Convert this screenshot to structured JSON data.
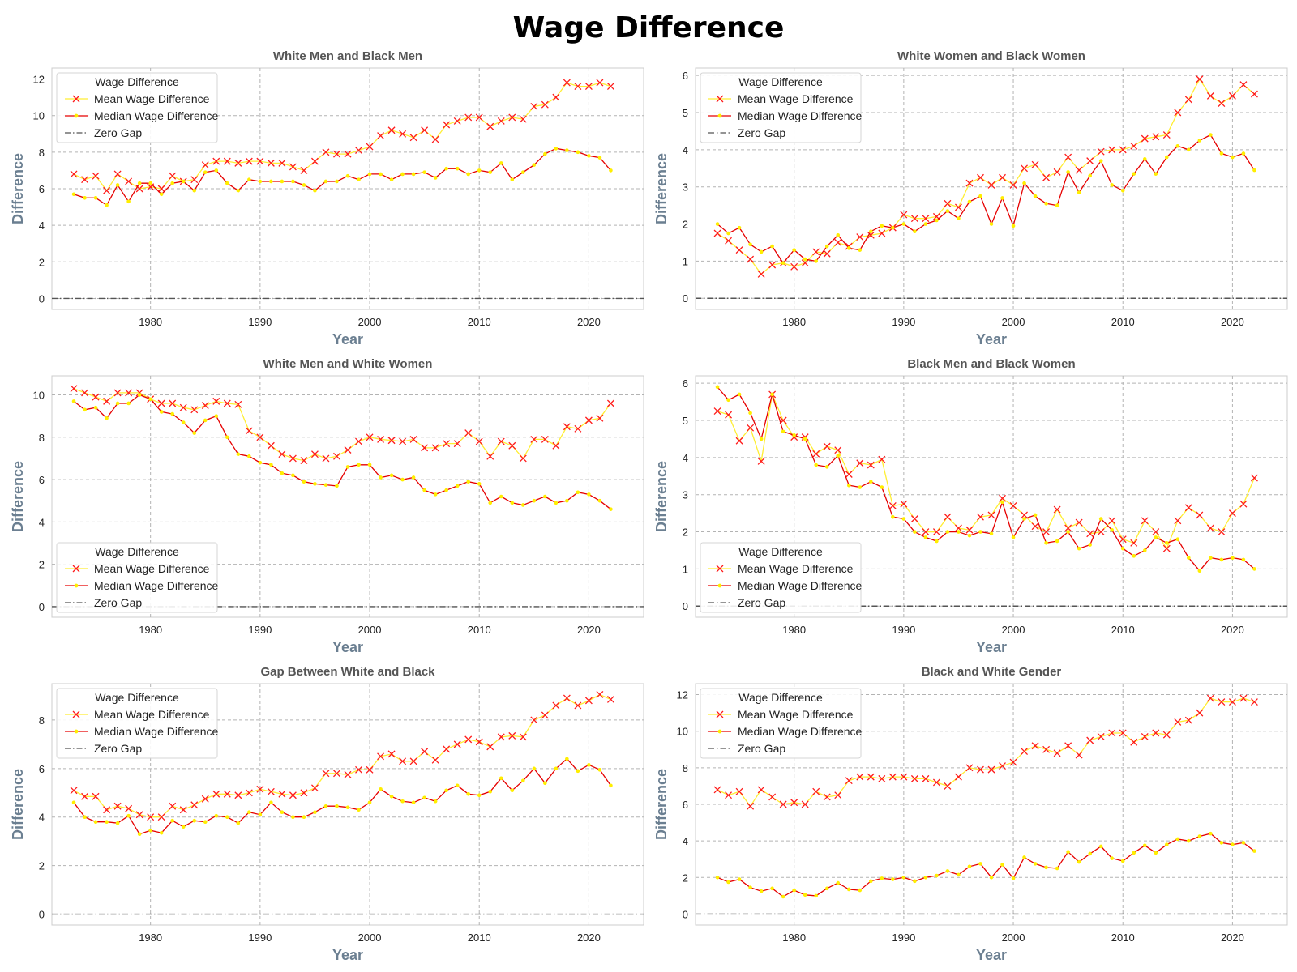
{
  "title": "Wage Difference",
  "chart_data": [
    {
      "type": "line",
      "title": "White Men and Black Men",
      "xlabel": "Year",
      "ylabel": "Difference",
      "xlim": [
        1971,
        2025
      ],
      "ylim": [
        -0.6,
        12.6
      ],
      "xticks": [
        "1980",
        "1990",
        "2000",
        "2010",
        "2020"
      ],
      "yticks": [
        "0",
        "2",
        "4",
        "6",
        "8",
        "10",
        "12"
      ],
      "grid": true,
      "legend": {
        "title": "Wage Difference",
        "position": "upper-left"
      },
      "x_start": 1973,
      "x_end": 2022,
      "series": [
        {
          "name": "Mean Wage Difference",
          "values": [
            6.8,
            6.5,
            6.7,
            5.9,
            6.8,
            6.4,
            6.0,
            6.1,
            6.0,
            6.7,
            6.4,
            6.5,
            7.3,
            7.5,
            7.5,
            7.4,
            7.5,
            7.5,
            7.4,
            7.4,
            7.2,
            7.0,
            7.5,
            8.0,
            7.9,
            7.9,
            8.1,
            8.3,
            8.9,
            9.2,
            9.0,
            8.8,
            9.2,
            8.7,
            9.5,
            9.7,
            9.9,
            9.9,
            9.4,
            9.7,
            9.9,
            9.8,
            10.5,
            10.6,
            11.0,
            11.8,
            11.6,
            11.6,
            11.8,
            11.6
          ]
        },
        {
          "name": "Median Wage Difference",
          "values": [
            5.7,
            5.5,
            5.5,
            5.1,
            6.2,
            5.3,
            6.3,
            6.3,
            5.7,
            6.3,
            6.4,
            5.9,
            6.9,
            7.0,
            6.3,
            5.9,
            6.5,
            6.4,
            6.4,
            6.4,
            6.4,
            6.2,
            5.9,
            6.4,
            6.4,
            6.7,
            6.5,
            6.8,
            6.8,
            6.5,
            6.8,
            6.8,
            6.9,
            6.6,
            7.1,
            7.1,
            6.8,
            7.0,
            6.9,
            7.4,
            6.5,
            6.9,
            7.3,
            7.9,
            8.2,
            8.1,
            8.0,
            7.8,
            7.7,
            7.0
          ]
        },
        {
          "name": "Zero Gap",
          "value": 0
        }
      ]
    },
    {
      "type": "line",
      "title": "White Women and Black Women",
      "xlabel": "Year",
      "ylabel": "Difference",
      "xlim": [
        1971,
        2025
      ],
      "ylim": [
        -0.3,
        6.2
      ],
      "xticks": [
        "1980",
        "1990",
        "2000",
        "2010",
        "2020"
      ],
      "yticks": [
        "0",
        "1",
        "2",
        "3",
        "4",
        "5",
        "6"
      ],
      "grid": true,
      "legend": {
        "title": "Wage Difference",
        "position": "upper-left"
      },
      "x_start": 1973,
      "x_end": 2022,
      "series": [
        {
          "name": "Mean Wage Difference",
          "values": [
            1.75,
            1.55,
            1.3,
            1.05,
            0.65,
            0.9,
            0.95,
            0.85,
            0.95,
            1.25,
            1.2,
            1.5,
            1.4,
            1.65,
            1.7,
            1.75,
            1.9,
            2.25,
            2.15,
            2.15,
            2.2,
            2.55,
            2.45,
            3.1,
            3.25,
            3.05,
            3.25,
            3.05,
            3.5,
            3.6,
            3.25,
            3.4,
            3.8,
            3.45,
            3.7,
            3.95,
            4.0,
            4.0,
            4.1,
            4.3,
            4.35,
            4.4,
            5.0,
            5.35,
            5.9,
            5.45,
            5.25,
            5.45,
            5.75,
            5.5
          ]
        },
        {
          "name": "Median Wage Difference",
          "values": [
            2.0,
            1.75,
            1.9,
            1.45,
            1.25,
            1.4,
            0.95,
            1.3,
            1.05,
            1.0,
            1.4,
            1.7,
            1.35,
            1.3,
            1.8,
            1.95,
            1.9,
            2.0,
            1.8,
            2.0,
            2.1,
            2.35,
            2.15,
            2.6,
            2.75,
            2.0,
            2.7,
            1.95,
            3.1,
            2.75,
            2.55,
            2.5,
            3.4,
            2.85,
            3.3,
            3.7,
            3.05,
            2.9,
            3.35,
            3.75,
            3.35,
            3.8,
            4.1,
            4.0,
            4.25,
            4.4,
            3.9,
            3.8,
            3.9,
            3.45
          ]
        },
        {
          "name": "Zero Gap",
          "value": 0
        }
      ]
    },
    {
      "type": "line",
      "title": "White Men and White Women",
      "xlabel": "Year",
      "ylabel": "Difference",
      "xlim": [
        1971,
        2025
      ],
      "ylim": [
        -0.5,
        10.9
      ],
      "xticks": [
        "1980",
        "1990",
        "2000",
        "2010",
        "2020"
      ],
      "yticks": [
        "0",
        "2",
        "4",
        "6",
        "8",
        "10"
      ],
      "grid": true,
      "legend": {
        "title": "Wage Difference",
        "position": "lower-left"
      },
      "x_start": 1973,
      "x_end": 2022,
      "series": [
        {
          "name": "Mean Wage Difference",
          "values": [
            10.3,
            10.1,
            9.9,
            9.7,
            10.1,
            10.1,
            10.1,
            9.8,
            9.6,
            9.6,
            9.4,
            9.3,
            9.5,
            9.7,
            9.6,
            9.55,
            8.3,
            8.0,
            7.6,
            7.2,
            7.0,
            6.9,
            7.2,
            7.0,
            7.1,
            7.4,
            7.8,
            8.0,
            7.9,
            7.85,
            7.8,
            7.9,
            7.5,
            7.5,
            7.7,
            7.7,
            8.2,
            7.8,
            7.1,
            7.8,
            7.6,
            7.0,
            7.9,
            7.9,
            7.6,
            8.5,
            8.4,
            8.8,
            8.9,
            9.6
          ]
        },
        {
          "name": "Median Wage Difference",
          "values": [
            9.7,
            9.3,
            9.4,
            8.9,
            9.6,
            9.6,
            10.0,
            9.8,
            9.2,
            9.1,
            8.7,
            8.2,
            8.8,
            9.0,
            8.0,
            7.2,
            7.1,
            6.8,
            6.7,
            6.3,
            6.2,
            5.9,
            5.8,
            5.75,
            5.7,
            6.6,
            6.7,
            6.7,
            6.1,
            6.2,
            6.0,
            6.1,
            5.5,
            5.3,
            5.5,
            5.7,
            5.9,
            5.8,
            4.9,
            5.2,
            4.9,
            4.8,
            5.0,
            5.2,
            4.9,
            5.0,
            5.4,
            5.3,
            5.0,
            4.6
          ]
        },
        {
          "name": "Zero Gap",
          "value": 0
        }
      ]
    },
    {
      "type": "line",
      "title": "Black Men and Black Women",
      "xlabel": "Year",
      "ylabel": "Difference",
      "xlim": [
        1971,
        2025
      ],
      "ylim": [
        -0.3,
        6.2
      ],
      "xticks": [
        "1980",
        "1990",
        "2000",
        "2010",
        "2020"
      ],
      "yticks": [
        "0",
        "1",
        "2",
        "3",
        "4",
        "5",
        "6"
      ],
      "grid": true,
      "legend": {
        "title": "Wage Difference",
        "position": "lower-left"
      },
      "x_start": 1973,
      "x_end": 2022,
      "series": [
        {
          "name": "Mean Wage Difference",
          "values": [
            5.25,
            5.15,
            4.45,
            4.8,
            3.9,
            5.7,
            5.0,
            4.55,
            4.55,
            4.1,
            4.3,
            4.2,
            3.55,
            3.85,
            3.8,
            3.95,
            2.7,
            2.75,
            2.35,
            2.0,
            2.0,
            2.4,
            2.1,
            2.05,
            2.4,
            2.45,
            2.9,
            2.7,
            2.45,
            2.15,
            2.0,
            2.6,
            2.1,
            2.25,
            1.95,
            2.0,
            2.3,
            1.8,
            1.7,
            2.3,
            2.0,
            1.55,
            2.3,
            2.65,
            2.45,
            2.1,
            2.0,
            2.5,
            2.75,
            3.45
          ]
        },
        {
          "name": "Median Wage Difference",
          "values": [
            5.9,
            5.55,
            5.7,
            5.2,
            4.5,
            5.7,
            4.7,
            4.6,
            4.5,
            3.8,
            3.75,
            4.05,
            3.25,
            3.2,
            3.35,
            3.2,
            2.4,
            2.35,
            2.0,
            1.85,
            1.75,
            2.0,
            2.0,
            1.9,
            2.0,
            1.95,
            2.8,
            1.85,
            2.35,
            2.45,
            1.7,
            1.75,
            2.0,
            1.55,
            1.65,
            2.35,
            2.05,
            1.55,
            1.35,
            1.5,
            1.85,
            1.7,
            1.8,
            1.3,
            0.95,
            1.3,
            1.25,
            1.3,
            1.25,
            1.0
          ]
        },
        {
          "name": "Zero Gap",
          "value": 0
        }
      ]
    },
    {
      "type": "line",
      "title": "Gap Between White and Black",
      "xlabel": "Year",
      "ylabel": "Difference",
      "xlim": [
        1971,
        2025
      ],
      "ylim": [
        -0.45,
        9.5
      ],
      "xticks": [
        "1980",
        "1990",
        "2000",
        "2010",
        "2020"
      ],
      "yticks": [
        "0",
        "2",
        "4",
        "6",
        "8"
      ],
      "grid": true,
      "legend": {
        "title": "Wage Difference",
        "position": "upper-left"
      },
      "x_start": 1973,
      "x_end": 2022,
      "series": [
        {
          "name": "Mean Wage Difference",
          "values": [
            5.1,
            4.85,
            4.85,
            4.3,
            4.45,
            4.35,
            4.1,
            4.0,
            4.0,
            4.45,
            4.3,
            4.5,
            4.75,
            4.95,
            4.95,
            4.9,
            5.0,
            5.15,
            5.05,
            4.95,
            4.9,
            5.0,
            5.2,
            5.8,
            5.8,
            5.75,
            5.95,
            5.95,
            6.5,
            6.6,
            6.3,
            6.3,
            6.7,
            6.35,
            6.8,
            7.0,
            7.2,
            7.1,
            6.9,
            7.3,
            7.35,
            7.3,
            8.0,
            8.2,
            8.6,
            8.9,
            8.6,
            8.8,
            9.05,
            8.85
          ]
        },
        {
          "name": "Median Wage Difference",
          "values": [
            4.6,
            4.0,
            3.8,
            3.8,
            3.75,
            4.05,
            3.3,
            3.45,
            3.35,
            3.85,
            3.6,
            3.85,
            3.8,
            4.05,
            4.0,
            3.75,
            4.2,
            4.1,
            4.6,
            4.2,
            4.0,
            4.0,
            4.2,
            4.45,
            4.45,
            4.4,
            4.3,
            4.6,
            5.15,
            4.85,
            4.65,
            4.6,
            4.8,
            4.65,
            5.1,
            5.3,
            4.95,
            4.9,
            5.05,
            5.6,
            5.1,
            5.5,
            6.0,
            5.4,
            6.0,
            6.4,
            5.9,
            6.15,
            5.95,
            5.3
          ]
        },
        {
          "name": "Zero Gap",
          "value": 0
        }
      ]
    },
    {
      "type": "line",
      "title": "Black and White Gender",
      "xlabel": "Year",
      "ylabel": "Difference",
      "xlim": [
        1971,
        2025
      ],
      "ylim": [
        -0.6,
        12.6
      ],
      "xticks": [
        "1980",
        "1990",
        "2000",
        "2010",
        "2020"
      ],
      "yticks": [
        "0",
        "2",
        "4",
        "6",
        "8",
        "10",
        "12"
      ],
      "grid": true,
      "legend": {
        "title": "Wage Difference",
        "position": "upper-left"
      },
      "x_start": 1973,
      "x_end": 2022,
      "series": [
        {
          "name": "Mean Wage Difference",
          "values": [
            6.8,
            6.5,
            6.7,
            5.9,
            6.8,
            6.4,
            6.0,
            6.1,
            6.0,
            6.7,
            6.4,
            6.5,
            7.3,
            7.5,
            7.5,
            7.4,
            7.5,
            7.5,
            7.4,
            7.4,
            7.2,
            7.0,
            7.5,
            8.0,
            7.9,
            7.9,
            8.1,
            8.3,
            8.9,
            9.2,
            9.0,
            8.8,
            9.2,
            8.7,
            9.5,
            9.7,
            9.9,
            9.9,
            9.4,
            9.7,
            9.9,
            9.8,
            10.5,
            10.6,
            11.0,
            11.8,
            11.6,
            11.6,
            11.8,
            11.6
          ]
        },
        {
          "name": "Median Wage Difference",
          "values": [
            2.0,
            1.75,
            1.9,
            1.45,
            1.25,
            1.4,
            0.95,
            1.3,
            1.05,
            1.0,
            1.4,
            1.7,
            1.35,
            1.3,
            1.8,
            1.95,
            1.9,
            2.0,
            1.8,
            2.0,
            2.1,
            2.35,
            2.15,
            2.6,
            2.75,
            2.0,
            2.7,
            1.95,
            3.1,
            2.75,
            2.55,
            2.5,
            3.4,
            2.85,
            3.3,
            3.7,
            3.05,
            2.9,
            3.35,
            3.75,
            3.35,
            3.8,
            4.1,
            4.0,
            4.25,
            4.4,
            3.9,
            3.8,
            3.9,
            3.45
          ]
        },
        {
          "name": "Zero Gap",
          "value": 0
        }
      ]
    }
  ]
}
